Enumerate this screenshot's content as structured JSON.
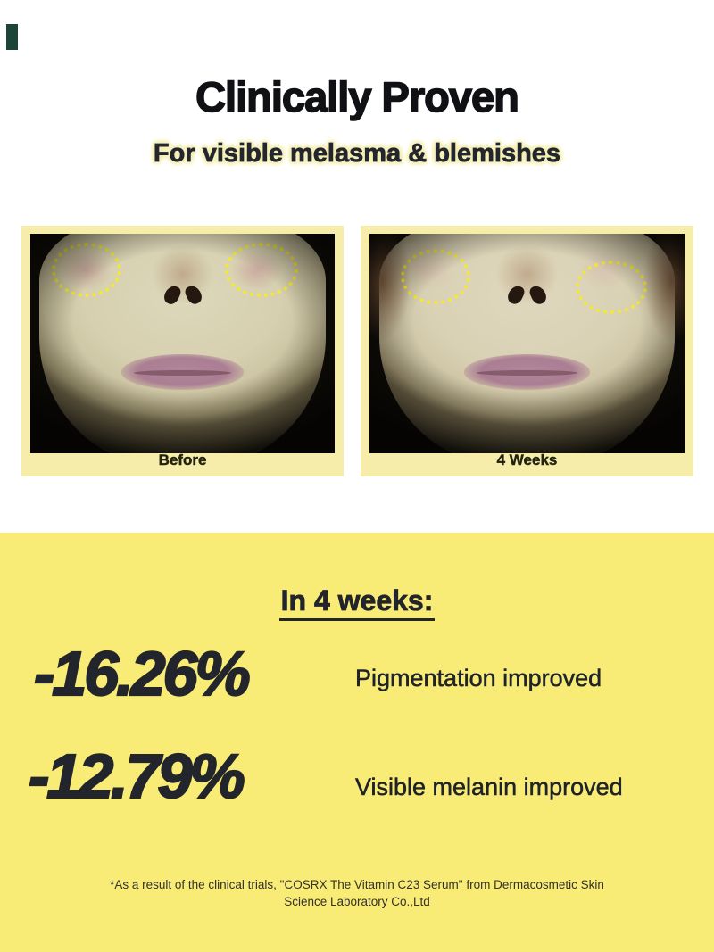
{
  "header": {
    "title": "Clinically Proven",
    "subtitle": "For visible melasma & blemishes"
  },
  "comparison": {
    "before_label": "Before",
    "after_label": "4 Weeks"
  },
  "results": {
    "heading": "In 4 weeks:",
    "stats": [
      {
        "value": "-16.26%",
        "label": "Pigmentation improved"
      },
      {
        "value": "-12.79%",
        "label": "Visible melanin improved"
      }
    ],
    "disclaimer_line1": "*As a result of the clinical trials, \"COSRX The Vitamin C23 Serum\" from Dermacosmetic Skin",
    "disclaimer_line2": "Science Laboratory Co.,Ltd"
  },
  "colors": {
    "section_yellow": "#f8eb76",
    "panel_yellow": "#f5eda9",
    "circle_yellow": "#f2e930",
    "text_dark": "#22252b"
  }
}
